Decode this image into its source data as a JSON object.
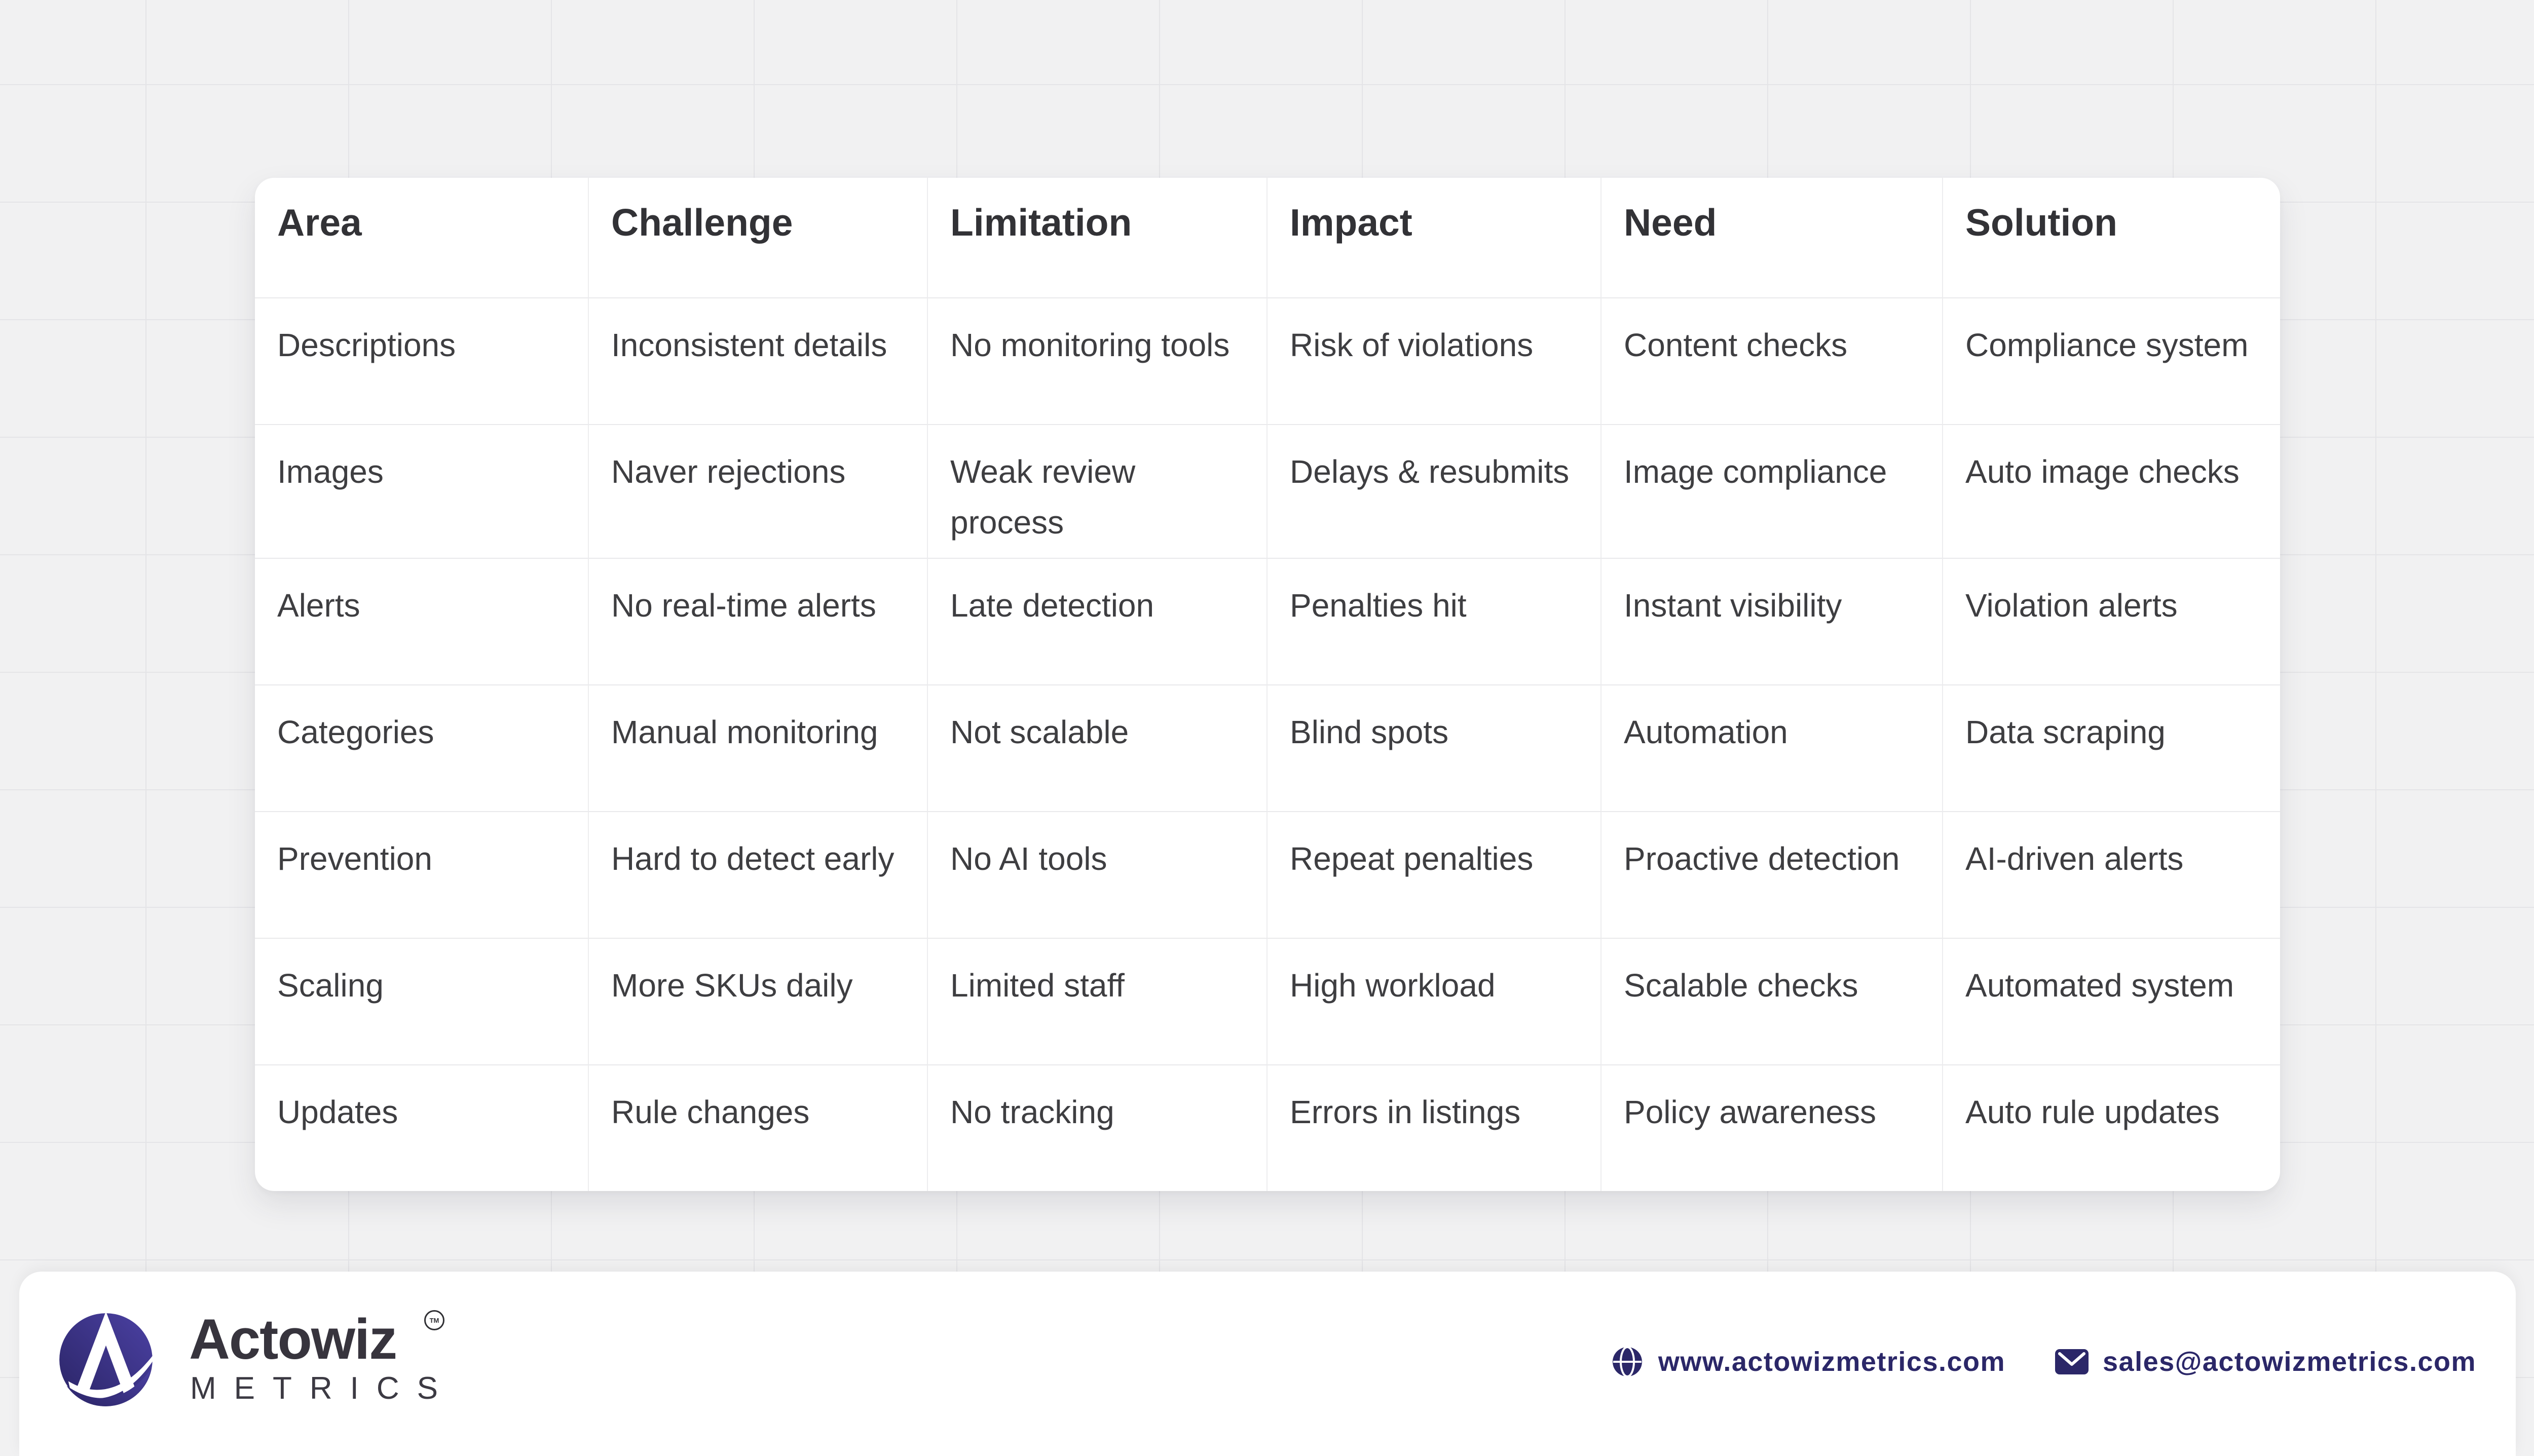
{
  "table": {
    "columns": [
      "Area",
      "Challenge",
      "Limitation",
      "Impact",
      "Need",
      "Solution"
    ],
    "rows": [
      [
        "Descriptions",
        "Inconsistent details",
        "No monitoring tools",
        "Risk of violations",
        "Content checks",
        "Compliance system"
      ],
      [
        "Images",
        "Naver rejections",
        "Weak review process",
        "Delays & resubmits",
        "Image compliance",
        "Auto image checks"
      ],
      [
        "Alerts",
        "No real-time alerts",
        "Late detection",
        "Penalties hit",
        "Instant visibility",
        "Violation alerts"
      ],
      [
        "Categories",
        "Manual monitoring",
        "Not scalable",
        "Blind spots",
        "Automation",
        "Data scraping"
      ],
      [
        "Prevention",
        "Hard to detect early",
        "No AI tools",
        "Repeat penalties",
        "Proactive detection",
        "AI-driven alerts"
      ],
      [
        "Scaling",
        "More SKUs daily",
        "Limited staff",
        "High workload",
        "Scalable checks",
        "Automated system"
      ],
      [
        "Updates",
        "Rule changes",
        "No tracking",
        "Errors in listings",
        "Policy awareness",
        "Auto rule updates"
      ]
    ]
  },
  "chart_data": {
    "type": "table",
    "title": "",
    "columns": [
      "Area",
      "Challenge",
      "Limitation",
      "Impact",
      "Need",
      "Solution"
    ],
    "rows": [
      [
        "Descriptions",
        "Inconsistent details",
        "No monitoring tools",
        "Risk of violations",
        "Content checks",
        "Compliance system"
      ],
      [
        "Images",
        "Naver rejections",
        "Weak review process",
        "Delays & resubmits",
        "Image compliance",
        "Auto image checks"
      ],
      [
        "Alerts",
        "No real-time alerts",
        "Late detection",
        "Penalties hit",
        "Instant visibility",
        "Violation alerts"
      ],
      [
        "Categories",
        "Manual monitoring",
        "Not scalable",
        "Blind spots",
        "Automation",
        "Data scraping"
      ],
      [
        "Prevention",
        "Hard to detect early",
        "No AI tools",
        "Repeat penalties",
        "Proactive detection",
        "AI-driven alerts"
      ],
      [
        "Scaling",
        "More SKUs daily",
        "Limited staff",
        "High workload",
        "Scalable checks",
        "Automated system"
      ],
      [
        "Updates",
        "Rule changes",
        "No tracking",
        "Errors in listings",
        "Policy awareness",
        "Auto rule updates"
      ]
    ]
  },
  "footer": {
    "brand": {
      "name": "Actowiz",
      "subtitle": "METRICS",
      "tm": "TM",
      "logo_icon": "actowiz-a-logo-icon"
    },
    "website": "www.actowizmetrics.com",
    "email": "sales@actowizmetrics.com",
    "icons": {
      "website": "globe-icon",
      "email": "envelope-icon"
    }
  },
  "colors": {
    "background": "#f1f1f2",
    "grid_line": "#e4e4e7",
    "card": "#ffffff",
    "header_text": "#323236",
    "cell_text": "#3e3e41",
    "divider": "#e9e9eb",
    "brand_navy": "#2b2768",
    "logo_gradient_dark": "#2a2465",
    "logo_gradient_light": "#4b41a3"
  }
}
